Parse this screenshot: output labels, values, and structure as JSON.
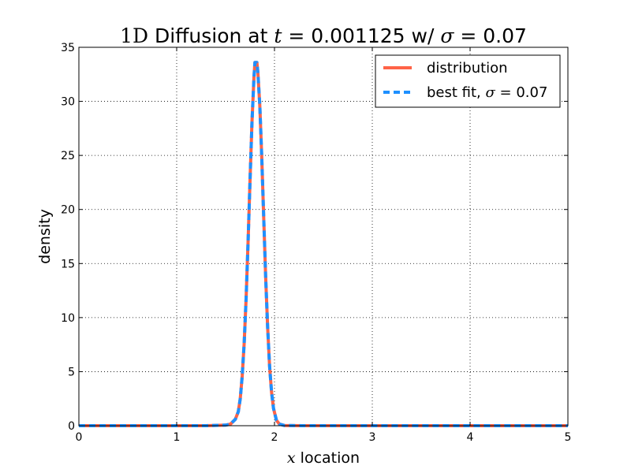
{
  "chart_data": {
    "type": "line",
    "title": {
      "prefix_math": "1D",
      "text1": " Diffusion at ",
      "t_var": "t",
      "eq1": " = ",
      "t_value": "0.001125",
      "text2": " w/ ",
      "sigma_var": "σ",
      "eq2": " = ",
      "sigma_value": "0.07"
    },
    "xlabel": {
      "math": "x",
      "text": " location"
    },
    "ylabel": "density",
    "xlim": [
      0,
      5
    ],
    "ylim": [
      0,
      35
    ],
    "xticks": [
      "0",
      "1",
      "2",
      "3",
      "4",
      "5"
    ],
    "yticks": [
      "0",
      "5",
      "10",
      "15",
      "20",
      "25",
      "30",
      "35"
    ],
    "grid": true,
    "legend_position": "upper-right",
    "legend": [
      {
        "label": "distribution",
        "style": "solid",
        "color": "#ff6347"
      },
      {
        "label": "best fit, ",
        "label_math_var": "σ",
        "label_math_eq": " = ",
        "label_math_value": "0.07",
        "style": "dashed",
        "color": "#1e90ff"
      }
    ],
    "series": [
      {
        "name": "distribution",
        "color": "#ff6347",
        "style": "solid",
        "x": [
          0,
          1.3,
          1.5,
          1.55,
          1.6,
          1.63,
          1.65,
          1.67,
          1.69,
          1.71,
          1.73,
          1.75,
          1.77,
          1.79,
          1.8,
          1.81,
          1.82,
          1.83,
          1.85,
          1.87,
          1.89,
          1.91,
          1.93,
          1.95,
          1.97,
          1.99,
          2.02,
          2.05,
          2.1,
          2.3,
          5
        ],
        "y": [
          0,
          0,
          0.05,
          0.15,
          0.6,
          1.3,
          2.5,
          4.6,
          7.6,
          11.8,
          17,
          22.7,
          28.1,
          32.2,
          33.6,
          33.6,
          33.6,
          32.7,
          29.6,
          24.8,
          19.2,
          13.7,
          9.1,
          5.5,
          3.1,
          1.6,
          0.5,
          0.15,
          0.02,
          0,
          0
        ]
      },
      {
        "name": "best fit, σ = 0.07",
        "color": "#1e90ff",
        "style": "dashed",
        "x": [
          0,
          1.3,
          1.5,
          1.55,
          1.6,
          1.63,
          1.65,
          1.67,
          1.69,
          1.71,
          1.73,
          1.75,
          1.77,
          1.79,
          1.8,
          1.81,
          1.82,
          1.83,
          1.85,
          1.87,
          1.89,
          1.91,
          1.93,
          1.95,
          1.97,
          1.99,
          2.02,
          2.05,
          2.1,
          2.3,
          5
        ],
        "y": [
          0,
          0,
          0.05,
          0.15,
          0.6,
          1.3,
          2.5,
          4.6,
          7.6,
          11.8,
          17,
          22.7,
          28.1,
          32.2,
          33.6,
          33.6,
          33.6,
          32.7,
          29.6,
          24.8,
          19.2,
          13.7,
          9.1,
          5.5,
          3.1,
          1.6,
          0.5,
          0.15,
          0.02,
          0,
          0
        ]
      }
    ]
  }
}
